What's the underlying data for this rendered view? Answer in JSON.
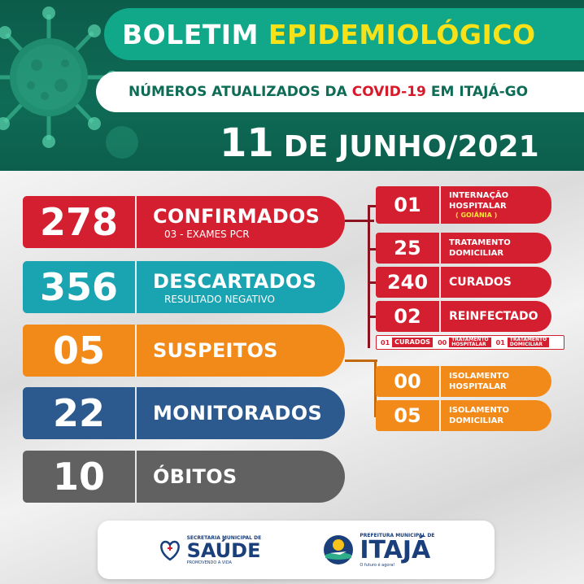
{
  "header": {
    "title_part1": "BOLETIM",
    "title_part2": "EPIDEMIOLÓGICO",
    "subtitle_pre": "NÚMEROS ATUALIZADOS DA",
    "subtitle_highlight": "COVID-19",
    "subtitle_post": "EM ITAJÁ-GO",
    "date_day": "11",
    "date_rest": "DE JUNHO/2021"
  },
  "rows": {
    "confirmados": {
      "value": "278",
      "label": "CONFIRMADOS",
      "sub": "03 - EXAMES PCR"
    },
    "descartados": {
      "value": "356",
      "label": "DESCARTADOS",
      "sub": "RESULTADO NEGATIVO"
    },
    "suspeitos": {
      "value": "05",
      "label": "SUSPEITOS"
    },
    "monitorados": {
      "value": "22",
      "label": "MONITORADOS"
    },
    "obitos": {
      "value": "10",
      "label": "ÓBITOS"
    }
  },
  "confirmed_breakdown": {
    "internacao": {
      "value": "01",
      "label_line1": "INTERNAÇÃO",
      "label_line2": "HOSPITALAR",
      "note": "( GOIÂNIA )"
    },
    "tratamento": {
      "value": "25",
      "label_line1": "TRATAMENTO",
      "label_line2": "DOMICILIAR"
    },
    "curados": {
      "value": "240",
      "label": "CURADOS"
    },
    "reinfectado": {
      "value": "02",
      "label": "REINFECTADO"
    }
  },
  "reinfectado_detail": {
    "curados": {
      "value": "01",
      "label": "CURADOS"
    },
    "trat_hosp": {
      "value": "00",
      "label_line1": "TRATAMENTO",
      "label_line2": "HOSPITALAR"
    },
    "trat_dom": {
      "value": "01",
      "label_line1": "TRATAMENTO",
      "label_line2": "DOMICILIAR"
    }
  },
  "suspect_breakdown": {
    "isol_hosp": {
      "value": "00",
      "label_line1": "ISOLAMENTO",
      "label_line2": "HOSPITALAR"
    },
    "isol_dom": {
      "value": "05",
      "label_line1": "ISOLAMENTO",
      "label_line2": "DOMICILIAR"
    }
  },
  "footer": {
    "saude_small": "SECRETARIA MUNICIPAL DE",
    "saude_name": "SAÚDE",
    "saude_tag": "PROMOVENDO A VIDA",
    "itaja_small": "PREFEITURA MUNICIPAL DE",
    "itaja_name": "ITAJÁ",
    "itaja_tag": "O futuro é agora!"
  },
  "colors": {
    "red": "#d31f2f",
    "teal": "#1aa3b0",
    "orange": "#f28a1a",
    "blue": "#2c5a8e",
    "gray": "#616161",
    "header_green": "#0e6b56"
  }
}
